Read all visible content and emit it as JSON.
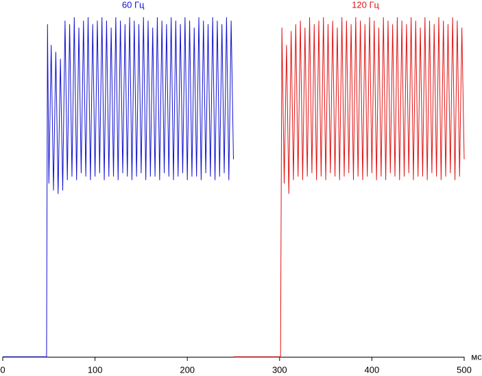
{
  "chart_data": {
    "type": "line",
    "x_label": "мс",
    "xlim": [
      0,
      500
    ],
    "ylim": [
      0,
      100
    ],
    "xticks": [
      0,
      100,
      200,
      300,
      400,
      500
    ],
    "series": [
      {
        "name": "60 Гц",
        "color": "#1010d0",
        "x": [
          0,
          47.5,
          48.5,
          50,
          52.5,
          55,
          57.5,
          60,
          62.5,
          65,
          67.5,
          70,
          72.5,
          75,
          77.5,
          80,
          82.5,
          85,
          87.5,
          90,
          92.5,
          95,
          97.5,
          100,
          102.5,
          105,
          107.5,
          110,
          112.5,
          115,
          117.5,
          120,
          122.5,
          125,
          127.5,
          130,
          132.5,
          135,
          137.5,
          140,
          142.5,
          145,
          147.5,
          150,
          152.5,
          155,
          157.5,
          160,
          162.5,
          165,
          167.5,
          170,
          172.5,
          175,
          177.5,
          180,
          182.5,
          185,
          187.5,
          190,
          192.5,
          195,
          197.5,
          200,
          202.5,
          205,
          207.5,
          210,
          212.5,
          215,
          217.5,
          220,
          222.5,
          225,
          227.5,
          230,
          232.5,
          235,
          237.5,
          240,
          242.5,
          245,
          247.5,
          250
        ],
        "values": [
          0,
          0,
          96,
          50,
          90,
          48,
          88,
          47,
          86,
          48,
          97,
          51,
          96,
          52,
          98,
          51,
          95,
          53,
          97,
          52,
          98,
          51,
          96,
          52,
          97,
          53,
          98,
          51,
          97,
          52,
          95,
          52,
          98,
          51,
          97,
          53,
          96,
          52,
          98,
          51,
          97,
          52,
          96,
          53,
          98,
          51,
          97,
          52,
          95,
          52,
          98,
          51,
          97,
          53,
          96,
          52,
          98,
          51,
          97,
          52,
          96,
          53,
          98,
          51,
          97,
          52,
          95,
          52,
          98,
          51,
          97,
          53,
          96,
          52,
          98,
          51,
          97,
          52,
          96,
          53,
          98,
          51,
          97,
          57
        ]
      },
      {
        "name": "120 Гц",
        "color": "#e01010",
        "x": [
          250,
          301,
          302.5,
          305,
          307.5,
          310,
          312.5,
          315,
          317.5,
          320,
          322.5,
          325,
          327.5,
          330,
          332.5,
          335,
          337.5,
          340,
          342.5,
          345,
          347.5,
          350,
          352.5,
          355,
          357.5,
          360,
          362.5,
          365,
          367.5,
          370,
          372.5,
          375,
          377.5,
          380,
          382.5,
          385,
          387.5,
          390,
          392.5,
          395,
          397.5,
          400,
          402.5,
          405,
          407.5,
          410,
          412.5,
          415,
          417.5,
          420,
          422.5,
          425,
          427.5,
          430,
          432.5,
          435,
          437.5,
          440,
          442.5,
          445,
          447.5,
          450,
          452.5,
          455,
          457.5,
          460,
          462.5,
          465,
          467.5,
          470,
          472.5,
          475,
          477.5,
          480,
          482.5,
          485,
          487.5,
          490,
          492.5,
          495,
          497.5,
          500
        ],
        "values": [
          0,
          0,
          95,
          50,
          90,
          47,
          94,
          51,
          96,
          52,
          97,
          51,
          95,
          52,
          98,
          53,
          96,
          51,
          97,
          52,
          98,
          51,
          96,
          53,
          97,
          52,
          95,
          51,
          98,
          52,
          97,
          53,
          96,
          51,
          98,
          52,
          97,
          51,
          96,
          52,
          98,
          53,
          97,
          51,
          95,
          52,
          98,
          51,
          97,
          53,
          96,
          52,
          98,
          51,
          97,
          52,
          96,
          53,
          98,
          51,
          97,
          52,
          95,
          52,
          98,
          51,
          97,
          53,
          96,
          52,
          98,
          51,
          97,
          52,
          96,
          53,
          98,
          51,
          97,
          52,
          95,
          57
        ]
      }
    ]
  }
}
